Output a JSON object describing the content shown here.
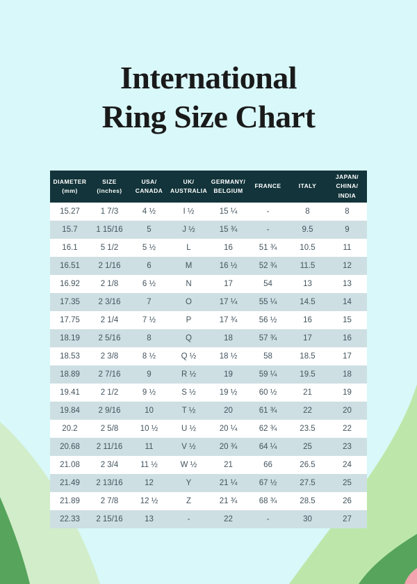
{
  "page": {
    "background": "#d9f8f9"
  },
  "title": {
    "line1": "International",
    "line2": "Ring Size Chart",
    "color": "#1a1a1a"
  },
  "colors": {
    "header_bg": "#12343a",
    "header_text": "#ffffff",
    "row_white": "#ffffff",
    "row_stripe": "#cddfe2",
    "cell_text": "#43545d",
    "decor_pale_green": "#d2edca",
    "decor_light_green": "#bde7aa",
    "decor_dark_green": "#57a45c",
    "decor_pink": "#f2a3ad"
  },
  "chart_data": {
    "type": "table",
    "title": "International Ring Size Chart",
    "columns": [
      "DIAMETER\n(mm)",
      "SIZE\n(inches)",
      "USA/\nCANADA",
      "UK/\nAUSTRALIA",
      "GERMANY/\nBELGIUM",
      "FRANCE",
      "ITALY",
      "JAPAN/\nCHINA/\nINDIA"
    ],
    "rows": [
      [
        "15.27",
        "1 7/3",
        "4 ½",
        "I ½",
        "15 ¼",
        "-",
        "8",
        "8"
      ],
      [
        "15.7",
        "1 15/16",
        "5",
        "J ½",
        "15 ¾",
        "-",
        "9.5",
        "9"
      ],
      [
        "16.1",
        "5 1/2",
        "5 ½",
        "L",
        "16",
        "51 ¾",
        "10.5",
        "11"
      ],
      [
        "16.51",
        "2 1/16",
        "6",
        "M",
        "16 ½",
        "52 ¾",
        "11.5",
        "12"
      ],
      [
        "16.92",
        "2 1/8",
        "6 ½",
        "N",
        "17",
        "54",
        "13",
        "13"
      ],
      [
        "17.35",
        "2 3/16",
        "7",
        "O",
        "17 ¼",
        "55 ¼",
        "14.5",
        "14"
      ],
      [
        "17.75",
        "2 1/4",
        "7 ½",
        "P",
        "17 ¾",
        "56 ½",
        "16",
        "15"
      ],
      [
        "18.19",
        "2 5/16",
        "8",
        "Q",
        "18",
        "57 ¾",
        "17",
        "16"
      ],
      [
        "18.53",
        "2 3/8",
        "8 ½",
        "Q ½",
        "18 ½",
        "58",
        "18.5",
        "17"
      ],
      [
        "18.89",
        "2 7/16",
        "9",
        "R ½",
        "19",
        "59 ¼",
        "19.5",
        "18"
      ],
      [
        "19.41",
        "2 1/2",
        "9 ½",
        "S ½",
        "19 ½",
        "60 ½",
        "21",
        "19"
      ],
      [
        "19.84",
        "2 9/16",
        "10",
        "T ½",
        "20",
        "61 ¾",
        "22",
        "20"
      ],
      [
        "20.2",
        "2 5/8",
        "10 ½",
        "U ½",
        "20 ¼",
        "62 ¾",
        "23.5",
        "22"
      ],
      [
        "20.68",
        "2 11/16",
        "11",
        "V ½",
        "20 ¾",
        "64 ¼",
        "25",
        "23"
      ],
      [
        "21.08",
        "2 3/4",
        "11 ½",
        "W ½",
        "21",
        "66",
        "26.5",
        "24"
      ],
      [
        "21.49",
        "2 13/16",
        "12",
        "Y",
        "21 ¼",
        "67 ½",
        "27.5",
        "25"
      ],
      [
        "21.89",
        "2 7/8",
        "12 ½",
        "Z",
        "21 ¾",
        "68 ¾",
        "28.5",
        "26"
      ],
      [
        "22.33",
        "2 15/16",
        "13",
        "-",
        "22",
        "-",
        "30",
        "27"
      ]
    ]
  }
}
